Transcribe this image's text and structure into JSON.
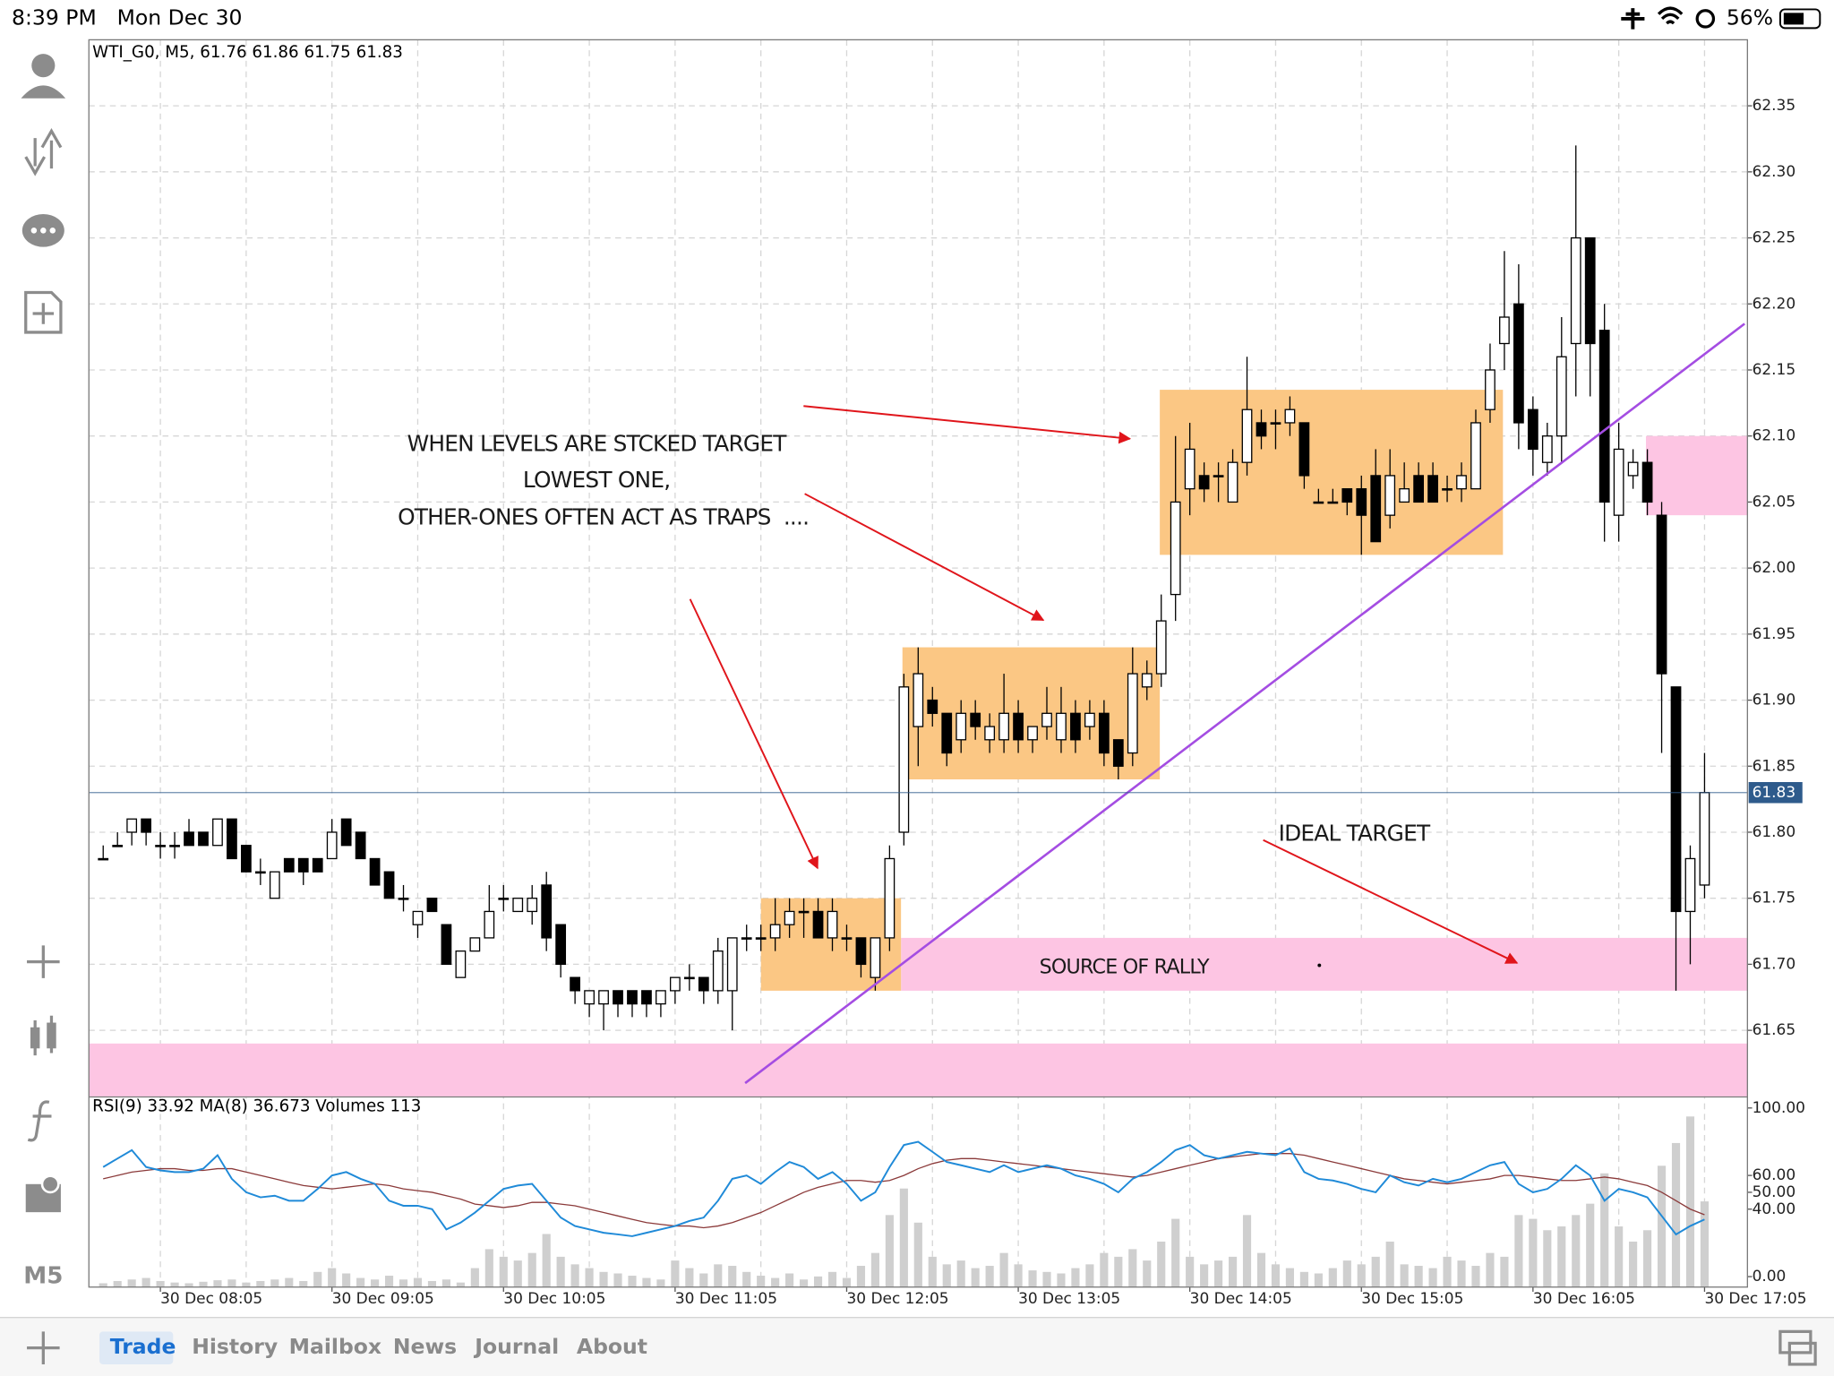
{
  "status_bar": {
    "time": "8:39 PM",
    "date": "Mon Dec 30",
    "battery": "56%"
  },
  "sidebar": {
    "timeframe": "M5"
  },
  "tabs": [
    "Trade",
    "History",
    "Mailbox",
    "News",
    "Journal",
    "About"
  ],
  "annotations": [
    "WHEN LEVELS ARE STCKED TARGET",
    "LOWEST ONE,",
    "OTHER-ONES OFTEN ACT AS TRAPS  ....",
    "IDEAL TARGET",
    "SOURCE OF RALLY"
  ],
  "chart_data": [
    {
      "type": "candlestick",
      "title": "WTI_G0, M5, 61.76 61.86 61.75 61.83",
      "xlim": [
        -1,
        115
      ],
      "xticks": [
        {
          "value": 4,
          "label": "30 Dec 08:05"
        },
        {
          "value": 16,
          "label": "30 Dec 09:05"
        },
        {
          "value": 28,
          "label": "30 Dec 10:05"
        },
        {
          "value": 40,
          "label": "30 Dec 11:05"
        },
        {
          "value": 52,
          "label": "30 Dec 12:05"
        },
        {
          "value": 64,
          "label": "30 Dec 13:05"
        },
        {
          "value": 76,
          "label": "30 Dec 14:05"
        },
        {
          "value": 88,
          "label": "30 Dec 15:05"
        },
        {
          "value": 100,
          "label": "30 Dec 16:05"
        },
        {
          "value": 112,
          "label": "30 Dec 17:05"
        }
      ],
      "ylim": [
        61.6,
        62.4
      ],
      "yticks": [
        62.35,
        {
          "value": 62.3,
          "label": "62.30"
        },
        62.25,
        {
          "value": 62.2,
          "label": "62.20"
        },
        62.15,
        {
          "value": 62.1,
          "label": "62.10"
        },
        62.05,
        {
          "value": 62.0,
          "label": "62.00"
        },
        61.95,
        {
          "value": 61.9,
          "label": "61.90"
        },
        61.85,
        {
          "value": 61.8,
          "label": "61.80"
        },
        61.75,
        {
          "value": 61.7,
          "label": "61.70"
        },
        61.65
      ],
      "grid": true,
      "current_price": 61.83,
      "current_price_color": "#2e5b8c",
      "bull_color": "#ffffff",
      "bear_color": "#000000",
      "wick_color": "#000000",
      "open": [
        61.78,
        61.79,
        61.8,
        61.81,
        61.79,
        61.79,
        61.8,
        61.8,
        61.79,
        61.81,
        61.79,
        61.77,
        61.75,
        61.78,
        61.78,
        61.78,
        61.78,
        61.81,
        61.8,
        61.78,
        61.77,
        61.75,
        61.73,
        61.75,
        61.73,
        61.69,
        61.71,
        61.72,
        61.75,
        61.74,
        61.74,
        61.76,
        61.73,
        61.69,
        61.67,
        61.67,
        61.68,
        61.68,
        61.68,
        61.67,
        61.68,
        61.69,
        61.69,
        61.68,
        61.68,
        61.72,
        61.72,
        61.72,
        61.73,
        61.74,
        61.74,
        61.72,
        61.72,
        61.72,
        61.69,
        61.72,
        61.8,
        61.88,
        61.9,
        61.89,
        61.87,
        61.89,
        61.87,
        61.87,
        61.89,
        61.87,
        61.88,
        61.87,
        61.89,
        61.88,
        61.89,
        61.87,
        61.86,
        61.91,
        61.92,
        61.98,
        62.06,
        62.07,
        62.07,
        62.05,
        62.08,
        62.11,
        62.11,
        62.11,
        62.11,
        62.05,
        62.05,
        62.06,
        62.06,
        62.07,
        62.04,
        62.05,
        62.07,
        62.07,
        62.06,
        62.06,
        62.06,
        62.12,
        62.17,
        62.2,
        62.12,
        62.08,
        62.1,
        62.17,
        62.25,
        62.18,
        62.04,
        62.07,
        62.08,
        62.04,
        61.91,
        61.74,
        61.76
      ],
      "high": [
        61.79,
        61.8,
        61.81,
        61.81,
        61.8,
        61.8,
        61.81,
        61.8,
        61.81,
        61.81,
        61.79,
        61.78,
        61.77,
        61.78,
        61.78,
        61.78,
        61.81,
        61.81,
        61.8,
        61.78,
        61.77,
        61.76,
        61.74,
        61.75,
        61.73,
        61.71,
        61.72,
        61.76,
        61.76,
        61.75,
        61.76,
        61.77,
        61.73,
        61.69,
        61.68,
        61.68,
        61.68,
        61.68,
        61.68,
        61.68,
        61.69,
        61.7,
        61.69,
        61.72,
        61.72,
        61.73,
        61.73,
        61.75,
        61.75,
        61.75,
        61.75,
        61.75,
        61.73,
        61.72,
        61.72,
        61.79,
        61.92,
        61.94,
        61.91,
        61.89,
        61.9,
        61.9,
        61.89,
        61.92,
        61.9,
        61.88,
        61.91,
        61.91,
        61.9,
        61.9,
        61.9,
        61.87,
        61.94,
        61.93,
        61.98,
        62.1,
        62.11,
        62.08,
        62.08,
        62.09,
        62.16,
        62.12,
        62.12,
        62.13,
        62.11,
        62.06,
        62.06,
        62.06,
        62.07,
        62.09,
        62.09,
        62.08,
        62.08,
        62.08,
        62.07,
        62.08,
        62.12,
        62.17,
        62.24,
        62.23,
        62.13,
        62.11,
        62.19,
        62.32,
        62.25,
        62.2,
        62.11,
        62.09,
        62.09,
        62.05,
        61.91,
        61.79,
        61.86
      ],
      "low": [
        61.78,
        61.79,
        61.79,
        61.79,
        61.78,
        61.78,
        61.79,
        61.79,
        61.79,
        61.78,
        61.77,
        61.76,
        61.75,
        61.77,
        61.76,
        61.77,
        61.78,
        61.79,
        61.78,
        61.76,
        61.75,
        61.74,
        61.72,
        61.74,
        61.7,
        61.69,
        61.71,
        61.72,
        61.74,
        61.74,
        61.73,
        61.71,
        61.69,
        61.67,
        61.66,
        61.65,
        61.66,
        61.66,
        61.66,
        61.66,
        61.67,
        61.68,
        61.67,
        61.67,
        61.65,
        61.71,
        61.71,
        61.71,
        61.72,
        61.72,
        61.72,
        61.71,
        61.71,
        61.69,
        61.68,
        61.71,
        61.79,
        61.85,
        61.88,
        61.85,
        61.86,
        61.87,
        61.86,
        61.86,
        61.86,
        61.86,
        61.87,
        61.86,
        61.86,
        61.87,
        61.85,
        61.84,
        61.85,
        61.9,
        61.91,
        61.96,
        62.04,
        62.05,
        62.05,
        62.05,
        62.07,
        62.09,
        62.09,
        62.1,
        62.06,
        62.05,
        62.05,
        62.04,
        62.01,
        62.02,
        62.03,
        62.05,
        62.05,
        62.05,
        62.05,
        62.05,
        62.06,
        62.11,
        62.15,
        62.09,
        62.07,
        62.07,
        62.08,
        62.13,
        62.13,
        62.02,
        62.02,
        62.06,
        62.04,
        61.86,
        61.68,
        61.7,
        61.75
      ],
      "close": [
        61.78,
        61.79,
        61.81,
        61.8,
        61.79,
        61.79,
        61.79,
        61.79,
        61.81,
        61.78,
        61.77,
        61.77,
        61.77,
        61.77,
        61.77,
        61.77,
        61.8,
        61.79,
        61.78,
        61.76,
        61.75,
        61.75,
        61.74,
        61.74,
        61.7,
        61.71,
        61.72,
        61.74,
        61.75,
        61.75,
        61.75,
        61.72,
        61.7,
        61.68,
        61.68,
        61.68,
        61.67,
        61.67,
        61.67,
        61.68,
        61.69,
        61.69,
        61.68,
        61.71,
        61.72,
        61.72,
        61.72,
        61.73,
        61.74,
        61.74,
        61.72,
        61.74,
        61.72,
        61.7,
        61.72,
        61.78,
        61.91,
        61.92,
        61.89,
        61.86,
        61.89,
        61.88,
        61.88,
        61.89,
        61.87,
        61.88,
        61.89,
        61.89,
        61.87,
        61.89,
        61.86,
        61.85,
        61.92,
        61.92,
        61.96,
        62.05,
        62.09,
        62.06,
        62.07,
        62.08,
        62.12,
        62.1,
        62.11,
        62.12,
        62.07,
        62.05,
        62.05,
        62.05,
        62.04,
        62.02,
        62.07,
        62.06,
        62.05,
        62.05,
        62.06,
        62.07,
        62.11,
        62.15,
        62.19,
        62.11,
        62.09,
        62.1,
        62.16,
        62.25,
        62.17,
        62.05,
        62.09,
        62.08,
        62.05,
        61.92,
        61.74,
        61.78,
        61.83
      ],
      "zones": [
        {
          "color": "#fdc5e3",
          "from": -1,
          "to": 115,
          "price": [
            61.6,
            61.64
          ]
        },
        {
          "color": "#fdc5e3",
          "from": 55.8,
          "to": 115,
          "price": [
            61.68,
            61.72
          ]
        },
        {
          "color": "#fdc5e3",
          "from": 107.9,
          "to": 115,
          "price": [
            62.04,
            62.1
          ]
        },
        {
          "color": "#fbc784",
          "from": 46,
          "to": 55.8,
          "price": [
            61.68,
            61.75
          ]
        },
        {
          "color": "#fbc784",
          "from": 55.9,
          "to": 73.9,
          "price": [
            61.84,
            61.94
          ]
        },
        {
          "color": "#fbc784",
          "from": 73.9,
          "to": 97.9,
          "price": [
            62.01,
            62.135
          ]
        }
      ],
      "trendline": {
        "color": "#a44de2",
        "from": [
          44.9,
          61.61
        ],
        "to": [
          114.8,
          62.185
        ]
      }
    },
    {
      "type": "indicator",
      "title": "RSI(9) 33.92 MA(8) 36.673 Volumes 113",
      "ylim": [
        -6.2,
        106.2
      ],
      "yticks": [
        {
          "value": 100,
          "label": "100.00"
        },
        {
          "value": 60,
          "label": "60.00"
        },
        {
          "value": 50,
          "label": "50.00"
        },
        {
          "value": 40,
          "label": "40.00"
        },
        {
          "value": 0,
          "label": "0.00"
        }
      ],
      "volume_lim": [
        0,
        250
      ],
      "rsi": {
        "color": "#1f8ad8",
        "values": [
          65,
          70,
          75,
          65,
          63,
          62,
          62,
          64,
          72,
          58,
          50,
          47,
          48,
          45,
          45,
          52,
          60,
          62,
          58,
          55,
          45,
          42,
          42,
          40,
          28,
          32,
          38,
          45,
          52,
          54,
          55,
          45,
          35,
          30,
          28,
          26,
          25,
          24,
          26,
          28,
          30,
          33,
          35,
          45,
          58,
          60,
          55,
          62,
          68,
          65,
          58,
          62,
          55,
          45,
          50,
          65,
          78,
          80,
          74,
          68,
          66,
          64,
          62,
          66,
          62,
          64,
          66,
          64,
          60,
          58,
          55,
          50,
          58,
          62,
          68,
          75,
          78,
          72,
          70,
          72,
          74,
          73,
          72,
          76,
          62,
          58,
          57,
          55,
          52,
          50,
          60,
          56,
          54,
          58,
          56,
          58,
          62,
          66,
          68,
          55,
          50,
          52,
          58,
          66,
          60,
          45,
          52,
          50,
          47,
          36,
          25,
          30,
          33.92
        ]
      },
      "ma": {
        "color": "#8b3a3a",
        "values": [
          58,
          60,
          62,
          63,
          64,
          64,
          63,
          63,
          64,
          64,
          62,
          60,
          58,
          56,
          54,
          53,
          52,
          53,
          54,
          55,
          54,
          52,
          51,
          50,
          48,
          46,
          43,
          42,
          41,
          42,
          44,
          44,
          43,
          42,
          40,
          38,
          36,
          34,
          32,
          31,
          30,
          30,
          29,
          30,
          32,
          35,
          38,
          42,
          46,
          50,
          53,
          55,
          57,
          57,
          56,
          57,
          60,
          64,
          67,
          69,
          70,
          70,
          69,
          68,
          67,
          66,
          65,
          64,
          63,
          62,
          61,
          60,
          59,
          60,
          62,
          64,
          66,
          68,
          70,
          71,
          72,
          73,
          73,
          73,
          72,
          70,
          68,
          66,
          64,
          62,
          60,
          58,
          57,
          56,
          55,
          56,
          57,
          58,
          60,
          60,
          59,
          58,
          57,
          57,
          58,
          59,
          58,
          56,
          54,
          50,
          45,
          40,
          36.673
        ]
      },
      "volumes": {
        "color": "#cfcfcf",
        "values": [
          5,
          8,
          10,
          12,
          8,
          6,
          5,
          7,
          9,
          10,
          6,
          8,
          10,
          12,
          8,
          20,
          25,
          18,
          12,
          10,
          15,
          10,
          12,
          8,
          10,
          6,
          25,
          50,
          40,
          35,
          45,
          70,
          40,
          30,
          25,
          20,
          18,
          15,
          12,
          10,
          35,
          25,
          18,
          30,
          28,
          20,
          15,
          12,
          18,
          10,
          14,
          20,
          12,
          28,
          45,
          95,
          130,
          85,
          40,
          30,
          35,
          25,
          28,
          45,
          30,
          22,
          20,
          18,
          25,
          30,
          45,
          40,
          50,
          35,
          60,
          90,
          40,
          30,
          35,
          40,
          95,
          45,
          30,
          25,
          20,
          18,
          25,
          35,
          30,
          40,
          60,
          30,
          28,
          25,
          40,
          35,
          28,
          45,
          40,
          95,
          90,
          75,
          80,
          95,
          110,
          150,
          80,
          60,
          75,
          160,
          190,
          225,
          113
        ]
      }
    }
  ]
}
